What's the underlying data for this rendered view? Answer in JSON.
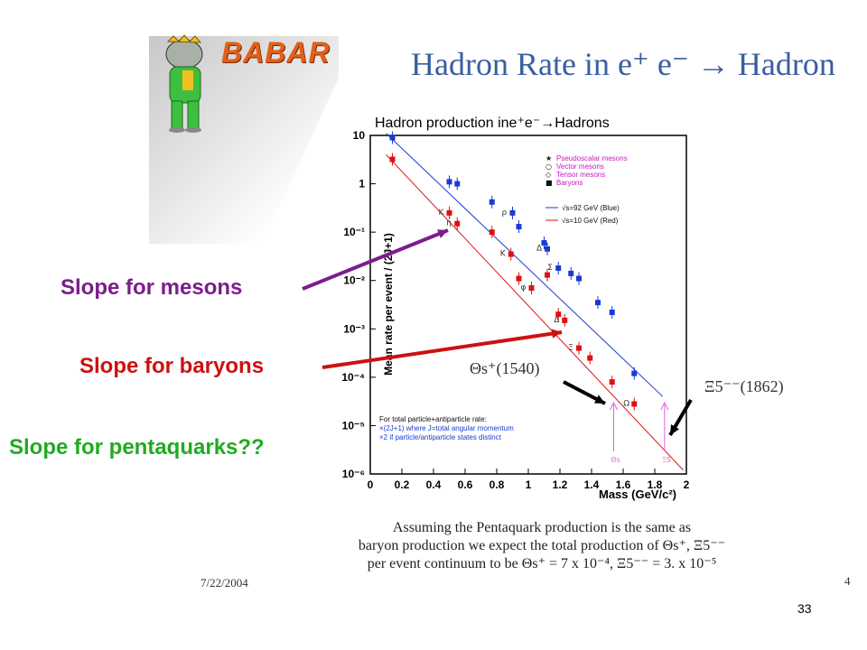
{
  "slide": {
    "title": "Hadron Rate in e⁺ e⁻ → Hadron",
    "logo_text": "BABAR",
    "page_number": "33",
    "original_date": "7/22/2004",
    "original_page": "4"
  },
  "annotations": {
    "mesons": "Slope for mesons",
    "baryons": "Slope for baryons",
    "pentaquarks": "Slope for pentaquarks??",
    "theta": "Θs⁺(1540)",
    "xi": "Ξ5⁻⁻(1862)"
  },
  "note": {
    "line1": "Assuming the Pentaquark production is the same as",
    "line2": "baryon production we expect the total production of Θs⁺, Ξ5⁻⁻",
    "line3": "per event continuum to be   Θs⁺ = 7 x 10⁻⁴,  Ξ5⁻⁻ = 3. x 10⁻⁵"
  },
  "plot_legend": {
    "entries": [
      "Pseudoscalar mesons",
      "Vector mesons",
      "Tensor mesons",
      "Baryons"
    ],
    "energy_blue": "√s=92 GeV (Blue)",
    "energy_red": "√s=10 GeV (Red)",
    "footnote_1": "For total particle+antiparticle rate:",
    "footnote_2": "×(2J+1)  where J=total angular momentum",
    "footnote_3": "×2  if particle/antiparticle states distinct"
  },
  "colors": {
    "blue_series": "#1a3ad0",
    "red_series": "#dd1111",
    "mesons_label": "#7b1e8c",
    "baryons_label": "#cc1111",
    "penta_label": "#22aa22",
    "title": "#3a5fa0",
    "pentaquark_marker": "#e060e0"
  },
  "chart_data": {
    "type": "scatter",
    "title": "Hadron production ine⁺e⁻→Hadrons",
    "xlabel": "Mass (GeV/c²)",
    "ylabel": "Mean rate per event / (2J+1)",
    "xlim": [
      0,
      2
    ],
    "ylim_log10": [
      -6,
      1
    ],
    "x_ticks": [
      "0",
      "0.2",
      "0.4",
      "0.6",
      "0.8",
      "1",
      "1.2",
      "1.4",
      "1.6",
      "1.8",
      "2"
    ],
    "y_ticks": [
      "10",
      "1",
      "10⁻¹",
      "10⁻²",
      "10⁻³",
      "10⁻⁴",
      "10⁻⁵",
      "10⁻⁶"
    ],
    "y_scale": "log",
    "series": [
      {
        "name": "√s=92 GeV (Blue)",
        "points": [
          {
            "x": 0.14,
            "y": 9.0,
            "label": ""
          },
          {
            "x": 0.5,
            "y": 1.1,
            "label": ""
          },
          {
            "x": 0.55,
            "y": 1.0,
            "label": ""
          },
          {
            "x": 0.77,
            "y": 0.42,
            "label": ""
          },
          {
            "x": 0.9,
            "y": 0.25,
            "label": "ρ"
          },
          {
            "x": 0.94,
            "y": 0.13,
            "label": ""
          },
          {
            "x": 1.1,
            "y": 0.06,
            "label": ""
          },
          {
            "x": 1.12,
            "y": 0.045,
            "label": "Δ"
          },
          {
            "x": 1.19,
            "y": 0.018,
            "label": "Σ"
          },
          {
            "x": 1.27,
            "y": 0.014,
            "label": ""
          },
          {
            "x": 1.32,
            "y": 0.011,
            "label": ""
          },
          {
            "x": 1.44,
            "y": 0.0035,
            "label": ""
          },
          {
            "x": 1.53,
            "y": 0.0022,
            "label": ""
          },
          {
            "x": 1.67,
            "y": 0.00012,
            "label": ""
          }
        ],
        "fit": [
          [
            0.1,
            11
          ],
          [
            1.85,
            4e-05
          ]
        ]
      },
      {
        "name": "√s=10 GeV (Red)",
        "points": [
          {
            "x": 0.14,
            "y": 3.2,
            "label": ""
          },
          {
            "x": 0.5,
            "y": 0.25,
            "label": "K"
          },
          {
            "x": 0.55,
            "y": 0.15,
            "label": "η"
          },
          {
            "x": 0.77,
            "y": 0.1,
            "label": ""
          },
          {
            "x": 0.89,
            "y": 0.035,
            "label": "K"
          },
          {
            "x": 0.94,
            "y": 0.011,
            "label": ""
          },
          {
            "x": 1.02,
            "y": 0.007,
            "label": "φ"
          },
          {
            "x": 1.12,
            "y": 0.013,
            "label": ""
          },
          {
            "x": 1.19,
            "y": 0.002,
            "label": ""
          },
          {
            "x": 1.23,
            "y": 0.0015,
            "label": "Δ"
          },
          {
            "x": 1.32,
            "y": 0.0004,
            "label": "Ξ"
          },
          {
            "x": 1.39,
            "y": 0.00025,
            "label": ""
          },
          {
            "x": 1.53,
            "y": 8e-05,
            "label": ""
          },
          {
            "x": 1.67,
            "y": 2.8e-05,
            "label": "Ω"
          }
        ],
        "fit": [
          [
            0.1,
            4
          ],
          [
            1.98,
            1.2e-06
          ]
        ]
      }
    ],
    "pentaquark_markers": [
      {
        "x": 1.54,
        "label": "Θs"
      },
      {
        "x": 1.862,
        "label": "Ξ5"
      }
    ]
  }
}
